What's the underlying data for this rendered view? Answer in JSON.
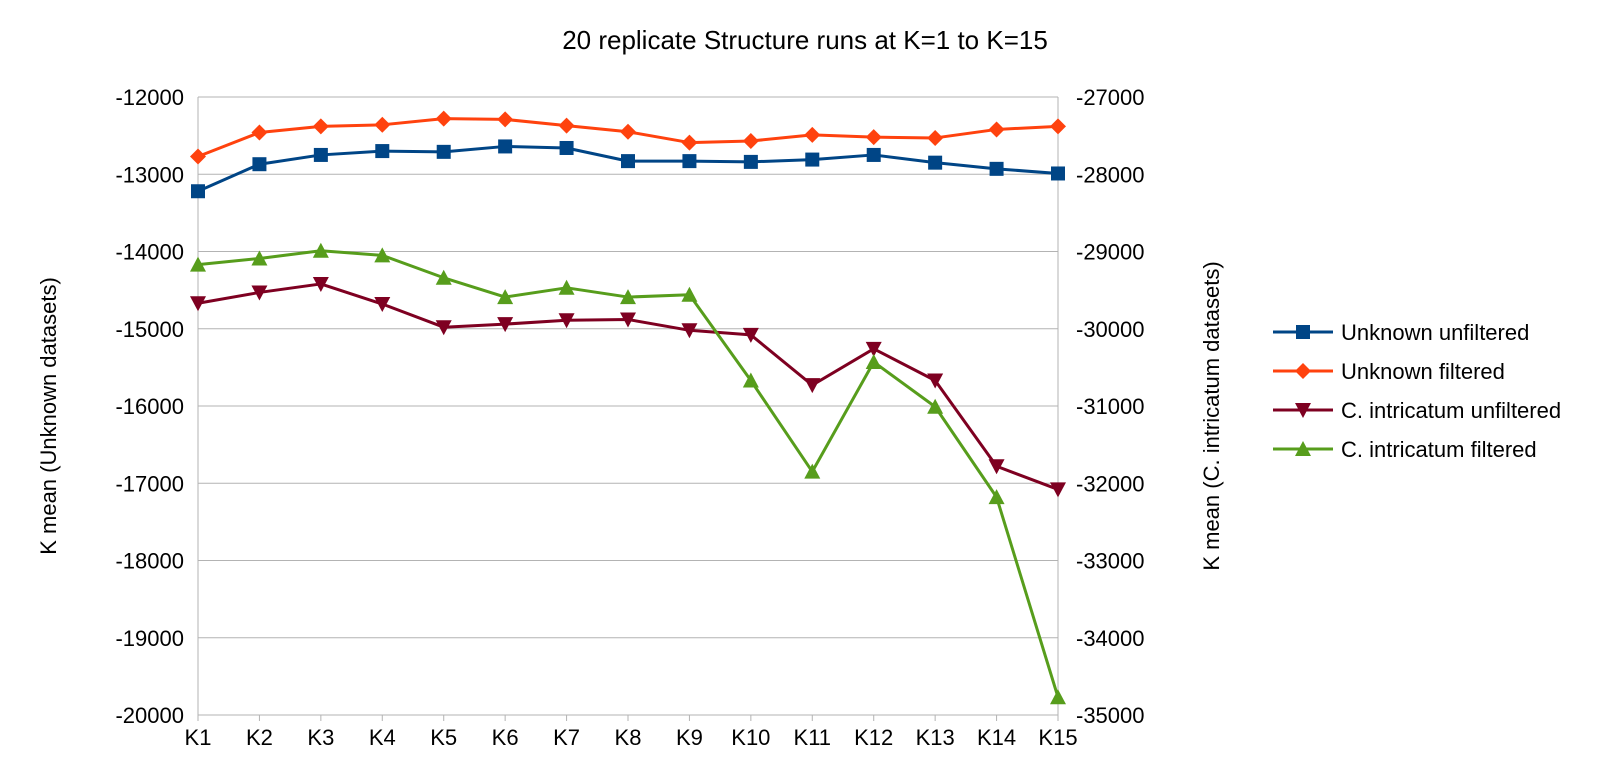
{
  "chart_data": {
    "type": "line",
    "title": "20 replicate Structure runs at K=1 to K=15",
    "xlabel": "",
    "ylabel_left": "K mean (Unknown datasets)",
    "ylabel_right": "K mean (C. intricatum datasets)",
    "categories": [
      "K1",
      "K2",
      "K3",
      "K4",
      "K5",
      "K6",
      "K7",
      "K8",
      "K9",
      "K10",
      "K11",
      "K12",
      "K13",
      "K14",
      "K15"
    ],
    "y_left": {
      "min": -20000,
      "max": -12000,
      "ticks": [
        "-12000",
        "-13000",
        "-14000",
        "-15000",
        "-16000",
        "-17000",
        "-18000",
        "-19000",
        "-20000"
      ]
    },
    "y_right": {
      "min": -35000,
      "max": -27000,
      "ticks": [
        "-27000",
        "-28000",
        "-29000",
        "-30000",
        "-31000",
        "-32000",
        "-33000",
        "-34000",
        "-35000"
      ]
    },
    "grid": true,
    "legend_position": "right",
    "series": [
      {
        "name": "Unknown unfiltered",
        "axis": "left",
        "color": "#004586",
        "marker": "square",
        "values": [
          -13220,
          -12870,
          -12750,
          -12700,
          -12710,
          -12640,
          -12660,
          -12830,
          -12830,
          -12840,
          -12810,
          -12750,
          -12850,
          -12930,
          -12990
        ]
      },
      {
        "name": "Unknown filtered",
        "axis": "left",
        "color": "#ff420e",
        "marker": "diamond",
        "values": [
          -12770,
          -12460,
          -12380,
          -12360,
          -12280,
          -12290,
          -12370,
          -12450,
          -12590,
          -12570,
          -12490,
          -12520,
          -12530,
          -12420,
          -12380
        ]
      },
      {
        "name": "C. intricatum unfiltered",
        "axis": "right",
        "color": "#7e0021",
        "marker": "triangle-down",
        "values": [
          -29670,
          -29530,
          -29420,
          -29680,
          -29980,
          -29940,
          -29890,
          -29880,
          -30020,
          -30080,
          -30730,
          -30260,
          -30670,
          -31780,
          -32080
        ]
      },
      {
        "name": "C. intricatum filtered",
        "axis": "right",
        "color": "#579d1c",
        "marker": "triangle-up",
        "values": [
          -29170,
          -29090,
          -28990,
          -29050,
          -29340,
          -29590,
          -29470,
          -29590,
          -29560,
          -30670,
          -31850,
          -30430,
          -31010,
          -32180,
          -34770
        ]
      }
    ]
  }
}
